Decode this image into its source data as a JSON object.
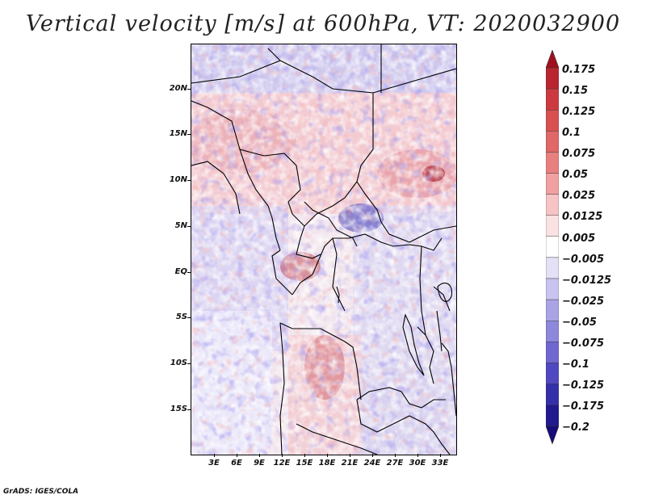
{
  "title": "Vertical velocity [m/s] at 600hPa, VT: 2020032900",
  "credit": "GrADS: IGES/COLA",
  "map": {
    "lat_labels": [
      "20N",
      "15N",
      "10N",
      "5N",
      "EQ",
      "5S",
      "10S",
      "15S"
    ],
    "lon_labels": [
      "3E",
      "6E",
      "9E",
      "12E",
      "15E",
      "18E",
      "21E",
      "24E",
      "27E",
      "30E",
      "33E"
    ],
    "field": "vertical velocity"
  },
  "colorbar": {
    "labels": [
      "0.175",
      "0.15",
      "0.125",
      "0.1",
      "0.075",
      "0.05",
      "0.025",
      "0.0125",
      "0.005",
      "−0.005",
      "−0.0125",
      "−0.025",
      "−0.05",
      "−0.075",
      "−0.1",
      "−0.125",
      "−0.175",
      "−0.2"
    ],
    "colors": [
      "#a01020",
      "#b82530",
      "#cc3a40",
      "#d85050",
      "#e06868",
      "#e88080",
      "#f0a0a0",
      "#f6c4c4",
      "#fbe2e2",
      "#ffffff",
      "#e4e0f6",
      "#c8c4ef",
      "#aaa4e6",
      "#8e88dc",
      "#7068d0",
      "#5048c0",
      "#3430aa",
      "#201a8e",
      "#160c7a"
    ],
    "top_arrow_color": "#a01020",
    "bottom_arrow_color": "#160c7a"
  }
}
